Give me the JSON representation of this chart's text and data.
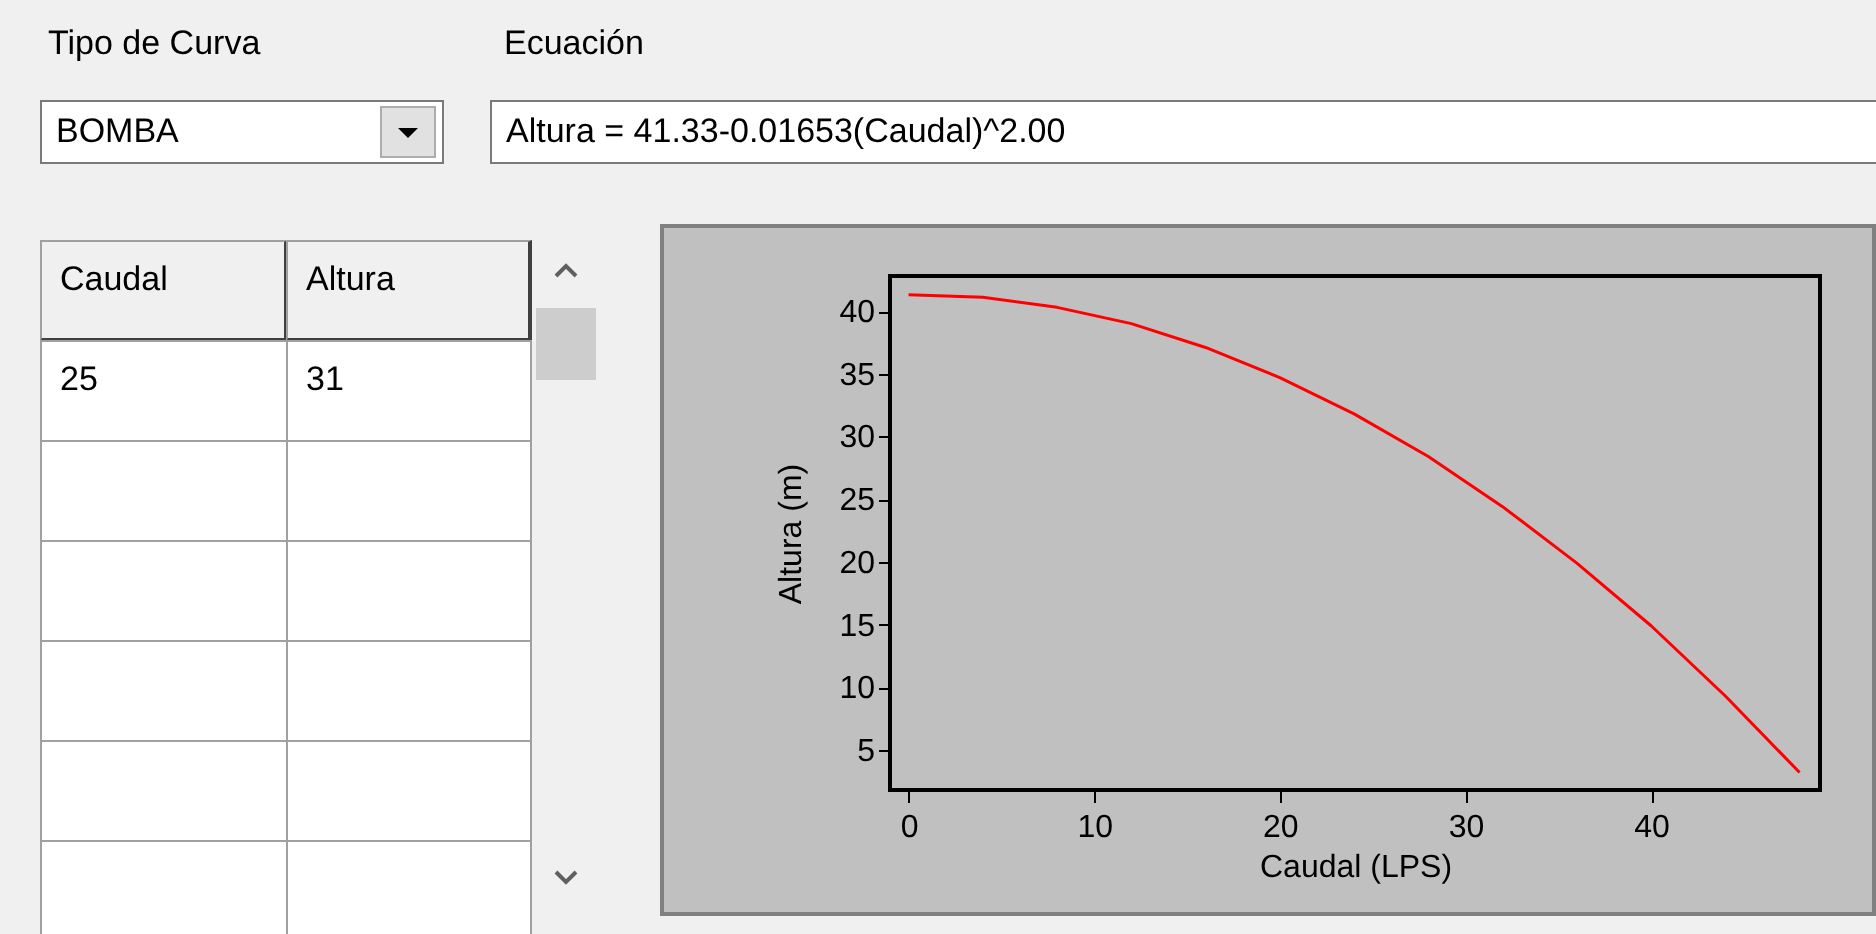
{
  "chart_data": {
    "type": "line",
    "xlabel": "Caudal (LPS)",
    "ylabel": "Altura (m)",
    "annotations": [
      "Tipo de Curva",
      "BOMBA",
      "Ecuación",
      "Altura = 41.33-0.01653(Caudal)^2.00",
      "Caudal",
      "Altura",
      "25",
      "31"
    ],
    "x": [
      0,
      4,
      8,
      12,
      16,
      20,
      24,
      28,
      32,
      36,
      40,
      44,
      48
    ],
    "series": [
      {
        "color": "#ff0000",
        "values": [
          41.3,
          41.1,
          40.3,
          39.0,
          37.1,
          34.7,
          31.8,
          28.4,
          24.4,
          19.9,
          14.9,
          9.3,
          3.2
        ]
      }
    ],
    "xlim": [
      -1,
      49.1
    ],
    "xticks": [
      0,
      10,
      20,
      30,
      40
    ],
    "ylim": [
      1.8,
      42.8
    ],
    "yticks": [
      5,
      10,
      15,
      20,
      25,
      30,
      35,
      40
    ],
    "grid": false,
    "legend": false
  }
}
